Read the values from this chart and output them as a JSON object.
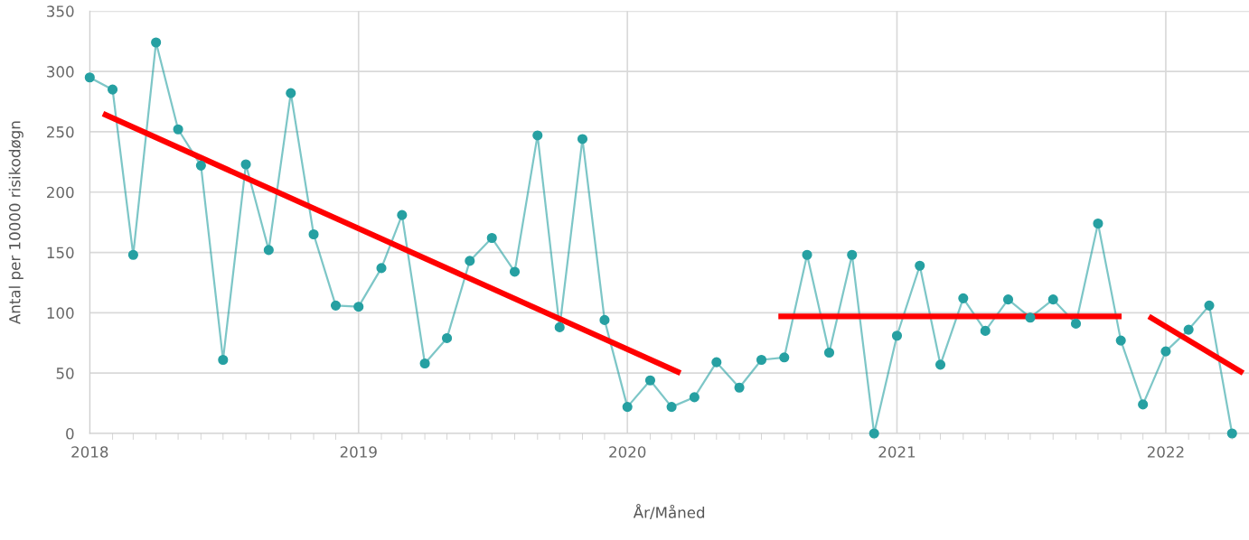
{
  "chart_data": {
    "type": "line",
    "xlabel": "År/Måned",
    "ylabel": "Antal per 10000 risikodøgn",
    "x": [
      "2018-01",
      "2018-02",
      "2018-03",
      "2018-04",
      "2018-05",
      "2018-06",
      "2018-07",
      "2018-08",
      "2018-09",
      "2018-10",
      "2018-11",
      "2018-12",
      "2019-01",
      "2019-02",
      "2019-03",
      "2019-04",
      "2019-05",
      "2019-06",
      "2019-07",
      "2019-08",
      "2019-09",
      "2019-10",
      "2019-11",
      "2019-12",
      "2020-01",
      "2020-02",
      "2020-03",
      "2020-04",
      "2020-05",
      "2020-06",
      "2020-07",
      "2020-08",
      "2020-09",
      "2020-10",
      "2020-11",
      "2020-12",
      "2021-01",
      "2021-02",
      "2021-03",
      "2021-04",
      "2021-05",
      "2021-06",
      "2021-07",
      "2021-08",
      "2021-09",
      "2021-10",
      "2021-11",
      "2021-12",
      "2022-01",
      "2022-02",
      "2022-03",
      "2022-04"
    ],
    "series": [
      {
        "color": "#26a0a2",
        "marker": "circle",
        "values": [
          295,
          285,
          148,
          324,
          252,
          222,
          61,
          223,
          152,
          282,
          165,
          106,
          105,
          137,
          181,
          58,
          79,
          143,
          162,
          134,
          247,
          88,
          244,
          94,
          22,
          44,
          22,
          30,
          59,
          38,
          61,
          63,
          148,
          67,
          148,
          0,
          81,
          139,
          57,
          112,
          85,
          111,
          96,
          111,
          91,
          174,
          77,
          24,
          68,
          86,
          106,
          0
        ]
      },
      {
        "color": "#ff0000",
        "marker": "none",
        "x": [
          "2018-01-19",
          "2020-03-13"
        ],
        "values": [
          265,
          50
        ]
      },
      {
        "color": "#ff0000",
        "marker": "none",
        "x": [
          "2020-07-24",
          "2021-11-02"
        ],
        "values": [
          97,
          97
        ]
      },
      {
        "color": "#ff0000",
        "marker": "none",
        "x": [
          "2021-12-09",
          "2022-04-16"
        ],
        "values": [
          97,
          50
        ]
      }
    ],
    "xlim": [
      "2018-01-01",
      "2022-04-24"
    ],
    "xticks": [
      {
        "value": "2018-01-01",
        "label": "2018"
      },
      {
        "value": "2019-01-01",
        "label": "2019"
      },
      {
        "value": "2020-01-01",
        "label": "2020"
      },
      {
        "value": "2021-01-01",
        "label": "2021"
      },
      {
        "value": "2022-01-01",
        "label": "2022"
      }
    ],
    "ylim": [
      0,
      350
    ],
    "yticks": [
      0,
      50,
      100,
      150,
      200,
      250,
      300,
      350
    ],
    "grid": true,
    "line_style": "solid"
  }
}
